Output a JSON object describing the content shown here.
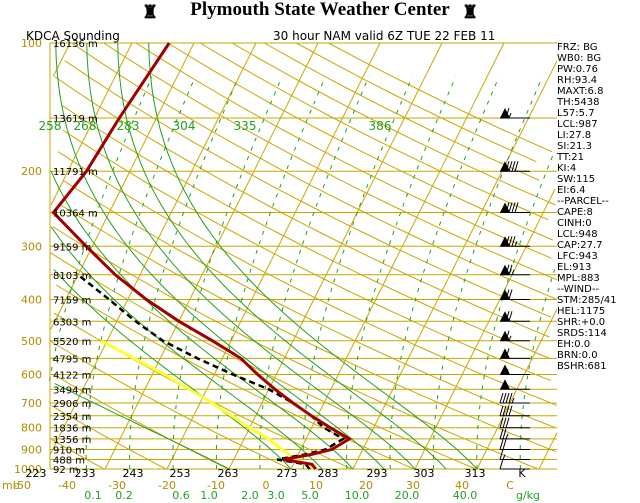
{
  "header": {
    "title": "Plymouth State Weather Center"
  },
  "chart_data": {
    "type": "skew-t",
    "station_label": "KDCA Sounding",
    "valid_label": "30 hour NAM valid 6Z TUE 22 FEB 11",
    "pressure_axis": {
      "ticks": [
        "100",
        "200",
        "300",
        "400",
        "500",
        "600",
        "700",
        "800",
        "900",
        "1000"
      ],
      "bottom_label": "mb"
    },
    "temperature_axis_ticks": [
      "-50",
      "-40",
      "-30",
      "-20",
      "-10",
      "0",
      "10",
      "20",
      "30",
      "40",
      "C"
    ],
    "theta_bottom_ticks": [
      "223",
      "233",
      "243",
      "253",
      "263",
      "273",
      "283",
      "293",
      "303",
      "313",
      "K"
    ],
    "theta_top_ticks": [
      "258",
      "268",
      "283",
      "304",
      "335",
      "386"
    ],
    "mixing_ratio_ticks": [
      "0.1",
      "0.2",
      "0.6",
      "1.0",
      "2.0",
      "3.0",
      "5.0",
      "10.0",
      "20.0",
      "40.0",
      "g/kg"
    ],
    "height_labels": [
      {
        "p": 100,
        "label": "16136 m"
      },
      {
        "p": 150,
        "label": "13619 m"
      },
      {
        "p": 200,
        "label": "11791 m"
      },
      {
        "p": 250,
        "label": "10364 m"
      },
      {
        "p": 300,
        "label": "9159 m"
      },
      {
        "p": 350,
        "label": "8103 m"
      },
      {
        "p": 400,
        "label": "7159 m"
      },
      {
        "p": 450,
        "label": "6303 m"
      },
      {
        "p": 500,
        "label": "5520 m"
      },
      {
        "p": 550,
        "label": "4795 m"
      },
      {
        "p": 600,
        "label": "4122 m"
      },
      {
        "p": 650,
        "label": "3494 m"
      },
      {
        "p": 700,
        "label": "2906 m"
      },
      {
        "p": 750,
        "label": "2354 m"
      },
      {
        "p": 800,
        "label": "1836 m"
      },
      {
        "p": 850,
        "label": "1356 m"
      },
      {
        "p": 900,
        "label": "910 m"
      },
      {
        "p": 950,
        "label": "488 m"
      },
      {
        "p": 1000,
        "label": "92 m"
      }
    ],
    "temperature_profile": [
      {
        "p": 1000,
        "t": 4
      },
      {
        "p": 975,
        "t": 3
      },
      {
        "p": 950,
        "t": -2
      },
      {
        "p": 925,
        "t": 2
      },
      {
        "p": 900,
        "t": 5
      },
      {
        "p": 850,
        "t": 7
      },
      {
        "p": 800,
        "t": 3
      },
      {
        "p": 750,
        "t": -1
      },
      {
        "p": 700,
        "t": -5
      },
      {
        "p": 650,
        "t": -9
      },
      {
        "p": 600,
        "t": -13
      },
      {
        "p": 550,
        "t": -17
      },
      {
        "p": 500,
        "t": -23
      },
      {
        "p": 450,
        "t": -30
      },
      {
        "p": 400,
        "t": -37
      },
      {
        "p": 350,
        "t": -44
      },
      {
        "p": 300,
        "t": -51
      },
      {
        "p": 250,
        "t": -59
      },
      {
        "p": 200,
        "t": -57
      },
      {
        "p": 150,
        "t": -56
      },
      {
        "p": 100,
        "t": -54
      }
    ],
    "dewpoint_profile": [
      {
        "p": 1000,
        "t": 3
      },
      {
        "p": 975,
        "t": 2
      },
      {
        "p": 950,
        "t": -3
      },
      {
        "p": 925,
        "t": 1
      },
      {
        "p": 900,
        "t": 4
      },
      {
        "p": 850,
        "t": 6
      },
      {
        "p": 800,
        "t": 2
      },
      {
        "p": 750,
        "t": -1
      },
      {
        "p": 700,
        "t": -5
      },
      {
        "p": 650,
        "t": -10
      },
      {
        "p": 600,
        "t": -17
      },
      {
        "p": 550,
        "t": -24
      },
      {
        "p": 500,
        "t": -31
      },
      {
        "p": 450,
        "t": -37
      },
      {
        "p": 400,
        "t": -43
      },
      {
        "p": 350,
        "t": -50
      },
      {
        "p": 300,
        "t": -57
      },
      {
        "p": 250,
        "t": -67
      },
      {
        "p": 200,
        "t": -71
      },
      {
        "p": 150,
        "t": -75
      },
      {
        "p": 100,
        "t": -80
      }
    ],
    "parcel_profile": [
      {
        "p": 1000,
        "t": 4
      },
      {
        "p": 950,
        "t": 0
      },
      {
        "p": 900,
        "t": -3
      },
      {
        "p": 850,
        "t": -6
      },
      {
        "p": 800,
        "t": -10
      },
      {
        "p": 700,
        "t": -18
      },
      {
        "p": 600,
        "t": -28
      },
      {
        "p": 500,
        "t": -41
      },
      {
        "p": 400,
        "t": -57
      },
      {
        "p": 300,
        "t": -77
      },
      {
        "p": 200,
        "t": -100
      },
      {
        "p": 150,
        "t": -115
      }
    ],
    "wind_barbs": [
      {
        "p": 150,
        "speed": 65
      },
      {
        "p": 200,
        "speed": 90
      },
      {
        "p": 250,
        "speed": 90
      },
      {
        "p": 300,
        "speed": 85
      },
      {
        "p": 350,
        "speed": 75
      },
      {
        "p": 400,
        "speed": 70
      },
      {
        "p": 450,
        "speed": 70
      },
      {
        "p": 500,
        "speed": 65
      },
      {
        "p": 550,
        "speed": 60
      },
      {
        "p": 600,
        "speed": 55
      },
      {
        "p": 650,
        "speed": 50
      },
      {
        "p": 700,
        "speed": 45
      },
      {
        "p": 750,
        "speed": 40
      },
      {
        "p": 800,
        "speed": 30
      },
      {
        "p": 850,
        "speed": 25
      },
      {
        "p": 900,
        "speed": 20
      },
      {
        "p": 950,
        "speed": 15
      },
      {
        "p": 1000,
        "speed": 10
      }
    ],
    "colors": {
      "isobar": "#c8a800",
      "isotherm": "#c8a800",
      "dry_adiabat": "#c8a800",
      "moist_adiabat": "#22a022",
      "mixing_ratio": "#22a022",
      "temperature": "#a00000",
      "dewpoint": "#000000",
      "parcel": "#ffff33"
    }
  },
  "indices": [
    "FRZ: BG",
    "WB0: BG",
    "PW:0.76",
    "RH:93.4",
    "MAXT:6.8",
    "TH:5438",
    "L57:5.7",
    "LCL:987",
    "LI:27.8",
    "SI:21.3",
    "TT:21",
    "KI:4",
    "SW:115",
    "EI:6.4",
    "--PARCEL--",
    "CAPE:8",
    "CINH:0",
    "LCL:948",
    "CAP:27.7",
    "LFC:943",
    "EL:913",
    "MPL:883",
    "--WIND--",
    "STM:285/41",
    "HEL:1175",
    "SHR:+0.0",
    "SRDS:114",
    "EH:0.0",
    "BRN:0.0",
    "BSHR:681"
  ]
}
